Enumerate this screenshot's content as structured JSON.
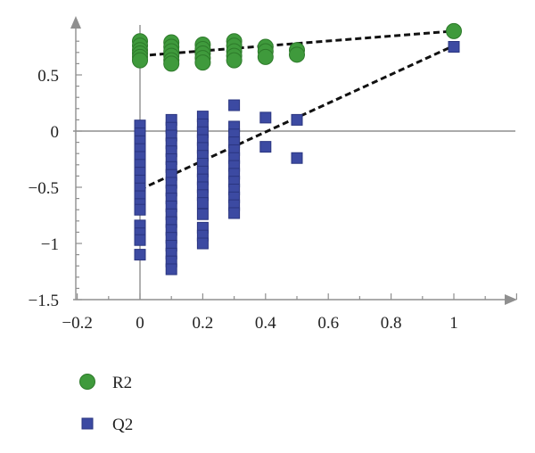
{
  "chart_data": {
    "type": "scatter",
    "title": "",
    "xlabel": "",
    "ylabel": "",
    "xlim": [
      -0.2,
      1.2
    ],
    "ylim": [
      -1.5,
      0.9
    ],
    "x_ticks": [
      -0.2,
      0,
      0.2,
      0.4,
      0.6,
      0.8,
      1
    ],
    "x_tick_labels": [
      "−0.2",
      "0",
      "0.2",
      "0.4",
      "0.6",
      "0.8",
      "1"
    ],
    "y_ticks": [
      -1.5,
      -1,
      -0.5,
      0,
      0.5
    ],
    "y_tick_labels": [
      "−1.5",
      "−1",
      "−0.5",
      "0",
      "0.5"
    ],
    "grid": false,
    "legend_position": "bottom-left",
    "series": [
      {
        "name": "R2",
        "marker": "circle",
        "color": "#3f9a3c",
        "points": [
          [
            0,
            0.8
          ],
          [
            0,
            0.76
          ],
          [
            0,
            0.72
          ],
          [
            0,
            0.69
          ],
          [
            0,
            0.66
          ],
          [
            0,
            0.63
          ],
          [
            0.1,
            0.79
          ],
          [
            0.1,
            0.75
          ],
          [
            0.1,
            0.71
          ],
          [
            0.1,
            0.67
          ],
          [
            0.1,
            0.63
          ],
          [
            0.1,
            0.6
          ],
          [
            0.2,
            0.77
          ],
          [
            0.2,
            0.73
          ],
          [
            0.2,
            0.69
          ],
          [
            0.2,
            0.65
          ],
          [
            0.2,
            0.61
          ],
          [
            0.3,
            0.8
          ],
          [
            0.3,
            0.76
          ],
          [
            0.3,
            0.71
          ],
          [
            0.3,
            0.67
          ],
          [
            0.3,
            0.63
          ],
          [
            0.4,
            0.75
          ],
          [
            0.4,
            0.71
          ],
          [
            0.4,
            0.66
          ],
          [
            0.5,
            0.72
          ],
          [
            0.5,
            0.68
          ],
          [
            1,
            0.89
          ]
        ],
        "fit_line": [
          [
            0,
            0.67
          ],
          [
            1,
            0.89
          ]
        ]
      },
      {
        "name": "Q2",
        "marker": "square",
        "color": "#3c4aa2",
        "points": [
          [
            0,
            0.05
          ],
          [
            0,
            -0.02
          ],
          [
            0,
            -0.09
          ],
          [
            0,
            -0.16
          ],
          [
            0,
            -0.23
          ],
          [
            0,
            -0.3
          ],
          [
            0,
            -0.37
          ],
          [
            0,
            -0.44
          ],
          [
            0,
            -0.51
          ],
          [
            0,
            -0.58
          ],
          [
            0,
            -0.65
          ],
          [
            0,
            -0.7
          ],
          [
            0,
            -0.84
          ],
          [
            0,
            -0.91
          ],
          [
            0,
            -0.97
          ],
          [
            0,
            -1.1
          ],
          [
            0.1,
            0.1
          ],
          [
            0.1,
            0.03
          ],
          [
            0.1,
            -0.04
          ],
          [
            0.1,
            -0.11
          ],
          [
            0.1,
            -0.18
          ],
          [
            0.1,
            -0.25
          ],
          [
            0.1,
            -0.32
          ],
          [
            0.1,
            -0.39
          ],
          [
            0.1,
            -0.46
          ],
          [
            0.1,
            -0.53
          ],
          [
            0.1,
            -0.6
          ],
          [
            0.1,
            -0.67
          ],
          [
            0.1,
            -0.74
          ],
          [
            0.1,
            -0.81
          ],
          [
            0.1,
            -0.88
          ],
          [
            0.1,
            -0.95
          ],
          [
            0.1,
            -1.02
          ],
          [
            0.1,
            -1.09
          ],
          [
            0.1,
            -1.16
          ],
          [
            0.1,
            -1.23
          ],
          [
            0.2,
            0.13
          ],
          [
            0.2,
            0.06
          ],
          [
            0.2,
            -0.01
          ],
          [
            0.2,
            -0.08
          ],
          [
            0.2,
            -0.15
          ],
          [
            0.2,
            -0.22
          ],
          [
            0.2,
            -0.29
          ],
          [
            0.2,
            -0.36
          ],
          [
            0.2,
            -0.43
          ],
          [
            0.2,
            -0.5
          ],
          [
            0.2,
            -0.57
          ],
          [
            0.2,
            -0.64
          ],
          [
            0.2,
            -0.74
          ],
          [
            0.2,
            -0.86
          ],
          [
            0.2,
            -0.93
          ],
          [
            0.2,
            -1.0
          ],
          [
            0.3,
            0.23
          ],
          [
            0.3,
            0.04
          ],
          [
            0.3,
            -0.03
          ],
          [
            0.3,
            -0.1
          ],
          [
            0.3,
            -0.17
          ],
          [
            0.3,
            -0.24
          ],
          [
            0.3,
            -0.31
          ],
          [
            0.3,
            -0.38
          ],
          [
            0.3,
            -0.45
          ],
          [
            0.3,
            -0.52
          ],
          [
            0.3,
            -0.59
          ],
          [
            0.3,
            -0.66
          ],
          [
            0.3,
            -0.73
          ],
          [
            0.4,
            0.12
          ],
          [
            0.4,
            -0.14
          ],
          [
            0.5,
            0.1
          ],
          [
            0.5,
            -0.24
          ],
          [
            1,
            0.75
          ]
        ],
        "fit_line": [
          [
            0,
            -0.52
          ],
          [
            1,
            0.76
          ]
        ]
      }
    ]
  }
}
